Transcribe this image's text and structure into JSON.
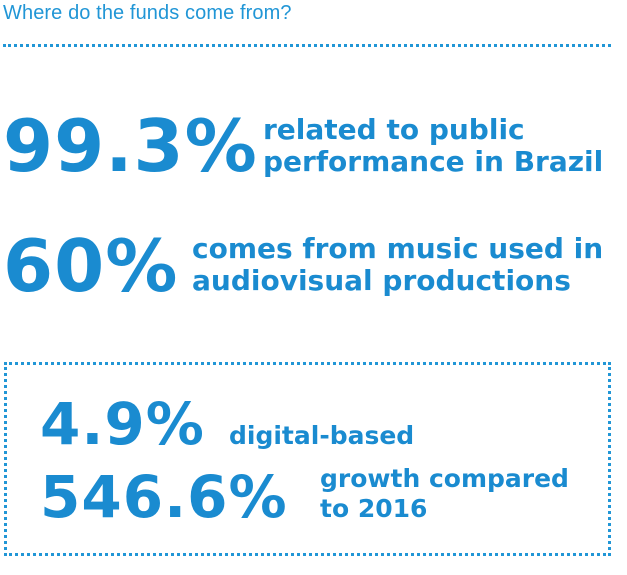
{
  "header": {
    "title": "Where do the funds come from?"
  },
  "stats": {
    "public_performance": {
      "value": "99.3%",
      "line1": "related to public",
      "line2": "performance in Brazil"
    },
    "audiovisual": {
      "value": "60%",
      "line1": "comes from music used in",
      "line2": "audiovisual productions"
    }
  },
  "digital": {
    "share": {
      "value": "4.9%",
      "label": "digital-based"
    },
    "growth": {
      "value": "546.6%",
      "line1": "growth compared",
      "line2": "to 2016"
    }
  },
  "colors": {
    "accent": "#1a8bd0",
    "dots": "#2196d6",
    "background": "#ffffff"
  }
}
